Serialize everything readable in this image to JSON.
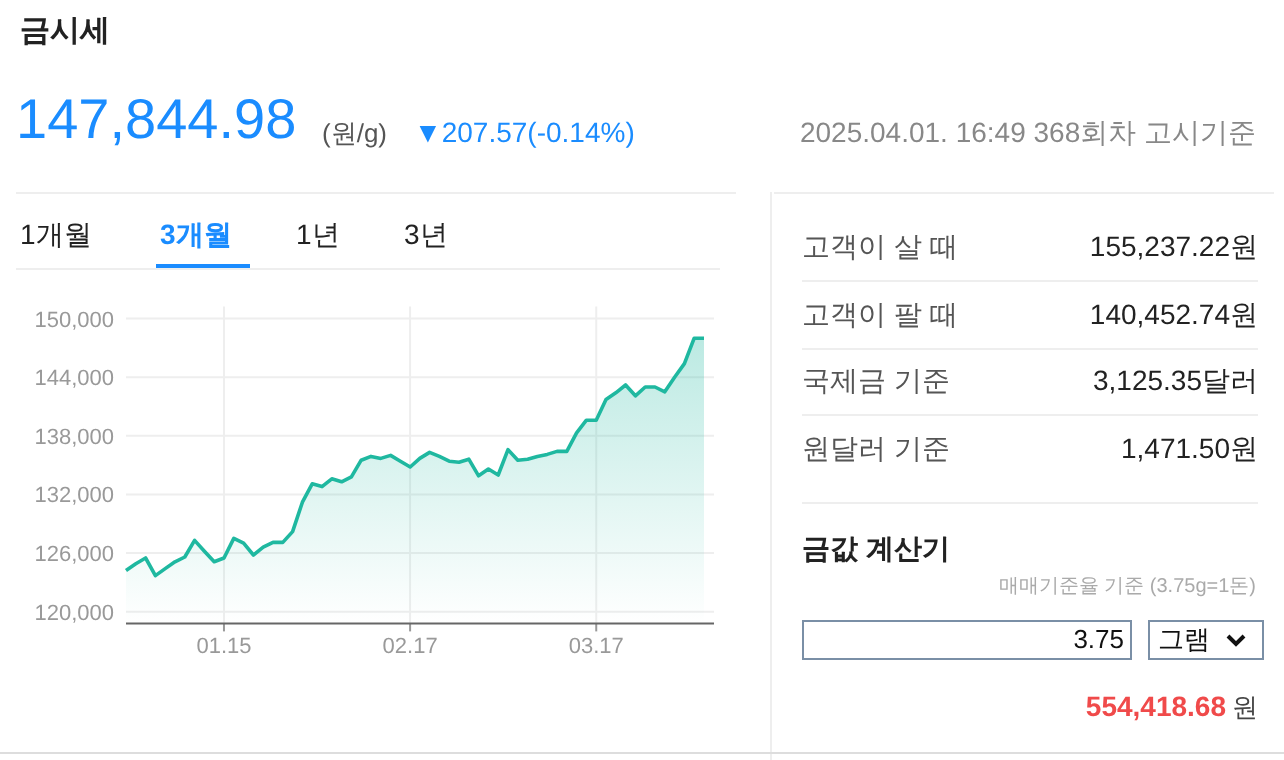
{
  "chart_data": [
    {
      "type": "area",
      "title": "금시세",
      "subtitle": "147,844.98 (원/g) ▼207.57(-0.14%)",
      "annotations": [
        "2025.04.01. 16:49 368회차 고시기준",
        "1개월",
        "3개월",
        "1년",
        "3년"
      ],
      "categories": [
        null,
        null,
        null,
        null,
        null,
        null,
        null,
        null,
        null,
        null,
        "01.15",
        null,
        null,
        null,
        null,
        null,
        null,
        null,
        null,
        null,
        null,
        null,
        null,
        null,
        null,
        null,
        null,
        null,
        null,
        "02.17",
        null,
        null,
        null,
        null,
        null,
        null,
        null,
        null,
        null,
        null,
        null,
        null,
        null,
        null,
        null,
        null,
        null,
        null,
        "03.17",
        null,
        null,
        null,
        null,
        null,
        null,
        null,
        null,
        null,
        null,
        null
      ],
      "series": [
        {
          "color": "#1fb8a0",
          "values": [
            124200,
            124900,
            125500,
            123700,
            124400,
            125100,
            125600,
            127300,
            126200,
            125100,
            125500,
            127500,
            127000,
            125800,
            126600,
            127100,
            127100,
            128200,
            131200,
            133100,
            132800,
            133600,
            133300,
            133800,
            135500,
            135900,
            135700,
            136000,
            135400,
            134800,
            135700,
            136300,
            135900,
            135400,
            135300,
            135600,
            133900,
            134600,
            134000,
            136600,
            135500,
            135600,
            135900,
            136100,
            136400,
            136400,
            138300,
            139600,
            139600,
            141700,
            142400,
            143200,
            142100,
            143000,
            143000,
            142500,
            144000,
            145400,
            148000,
            148000
          ]
        }
      ],
      "ylim": [
        118800,
        150000
      ],
      "yticks": [
        {
          "value": 120000,
          "label": "120,000"
        },
        {
          "value": 126000,
          "label": "126,000"
        },
        {
          "value": 132000,
          "label": "132,000"
        },
        {
          "value": 138000,
          "label": "138,000"
        },
        {
          "value": 144000,
          "label": "144,000"
        },
        {
          "value": 150000,
          "label": "150,000"
        }
      ],
      "grid": true
    },
    {
      "type": "other",
      "title": "금값 계산기",
      "annotations": [
        "고객이 살 때",
        "155,237.22원",
        "고객이 팔 때",
        "140,452.74원",
        "국제금 기준",
        "3,125.35달러",
        "원달러 기준",
        "1,471.50원",
        "매매기준율 기준 (3.75g=1돈)",
        "3.75",
        "그램",
        "554,418.68 원"
      ]
    }
  ]
}
